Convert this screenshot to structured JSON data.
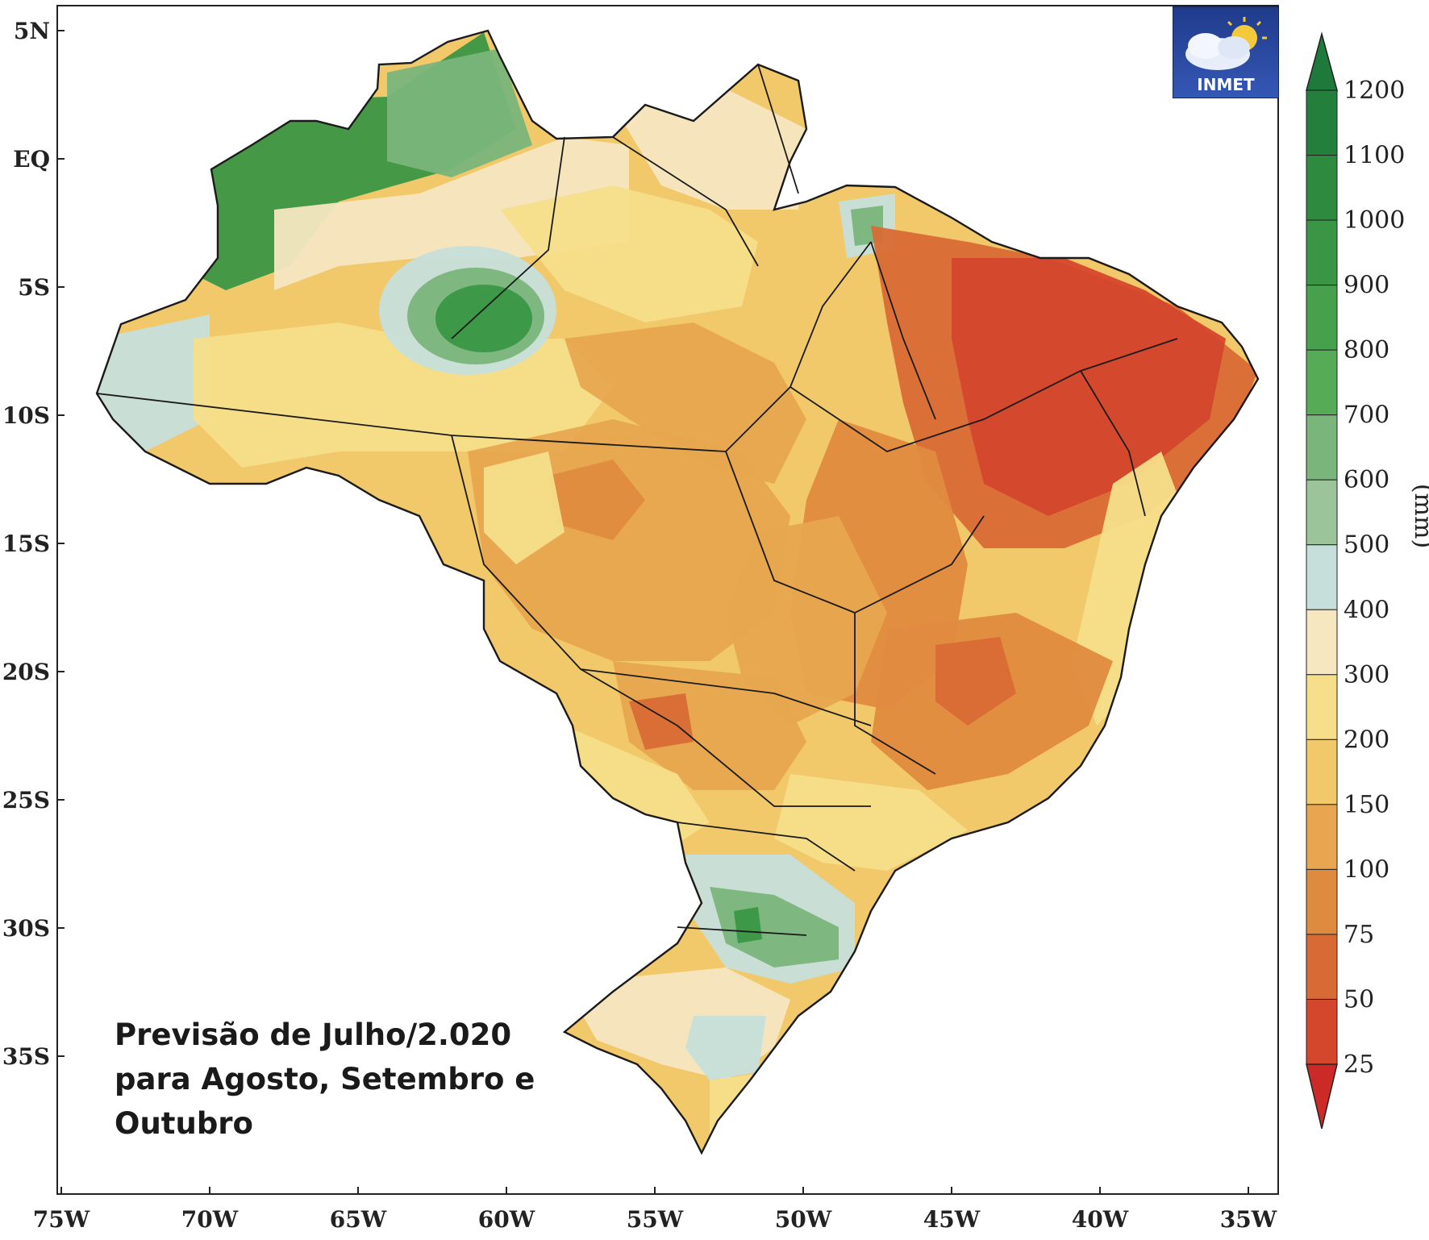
{
  "map": {
    "logo_text": "INMET",
    "caption_lines": [
      "Previsão de Julho/2.020",
      "para Agosto, Setembro e",
      "Outubro"
    ],
    "lat_labels": [
      "5N",
      "EQ",
      "5S",
      "10S",
      "15S",
      "20S",
      "25S",
      "30S",
      "35S"
    ],
    "lon_labels": [
      "75W",
      "70W",
      "65W",
      "60W",
      "55W",
      "50W",
      "45W",
      "40W",
      "35W"
    ],
    "colorbar": {
      "unit": "(mm)",
      "labels": [
        "1200",
        "1100",
        "1000",
        "900",
        "800",
        "700",
        "600",
        "500",
        "400",
        "300",
        "200",
        "150",
        "100",
        "75",
        "50",
        "25"
      ],
      "colors_top_to_bottom": [
        "#1e7a3a",
        "#237f3c",
        "#2e8a3f",
        "#3a9645",
        "#47a04c",
        "#56ab56",
        "#7ab57b",
        "#9bc49b",
        "#c6dfda",
        "#f6e7c1",
        "#f6de8a",
        "#f1c86a",
        "#e7a64f",
        "#df8b3f",
        "#d86b35",
        "#d4472c",
        "#cc2a26"
      ]
    },
    "region_colors": {
      "dark_green": "#3a9645",
      "mid_green": "#7ab57b",
      "pale_blue": "#c6dfda",
      "cream": "#f6e7c1",
      "yellow": "#f6de8a",
      "light_orange": "#f1c86a",
      "orange": "#e7a64f",
      "dark_orange": "#df8b3f",
      "red_orange": "#d86b35",
      "red": "#d4472c"
    }
  }
}
